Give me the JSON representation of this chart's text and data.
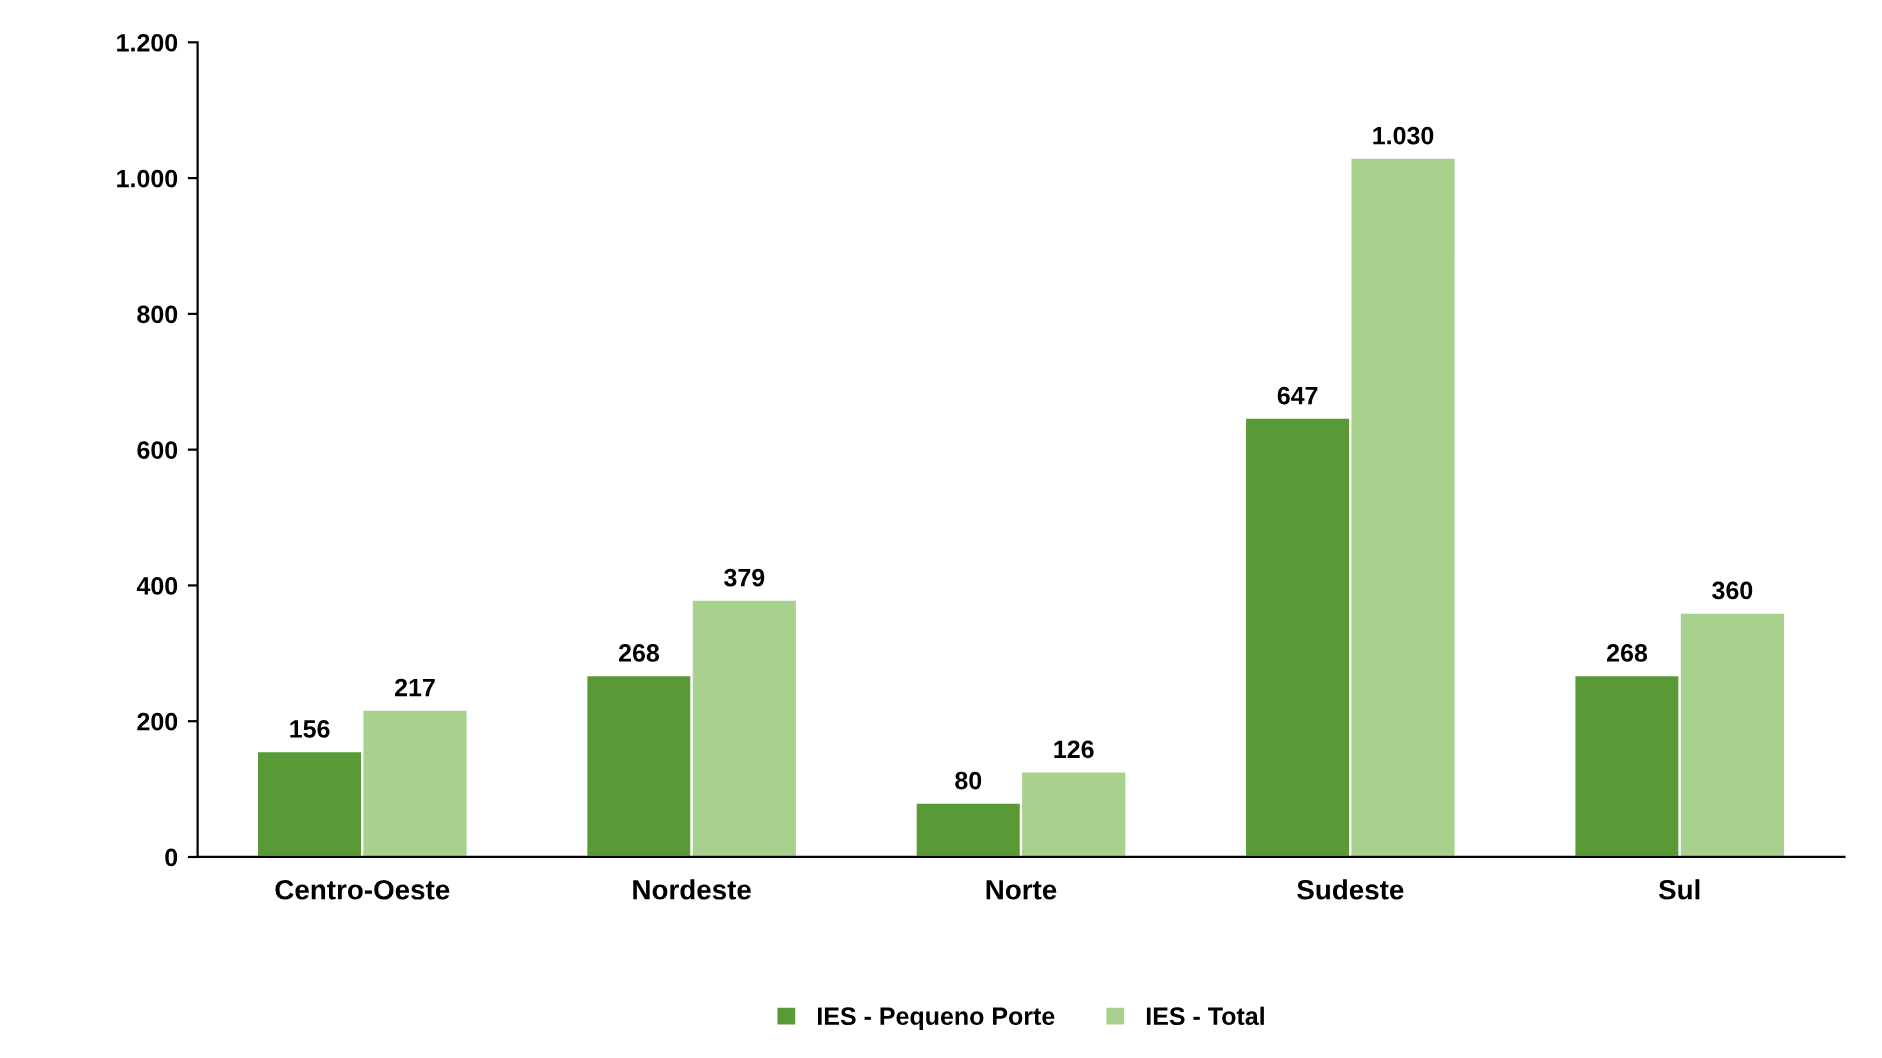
{
  "chart_data": {
    "type": "bar",
    "categories": [
      "Centro-Oeste",
      "Nordeste",
      "Norte",
      "Sudeste",
      "Sul"
    ],
    "series": [
      {
        "name": "IES - Pequeno Porte",
        "color": "#5a9a36",
        "values": [
          156,
          268,
          80,
          647,
          268
        ],
        "value_labels": [
          "156",
          "268",
          "80",
          "647",
          "268"
        ]
      },
      {
        "name": "IES - Total",
        "color": "#a9d18e",
        "values": [
          217,
          379,
          126,
          1030,
          360
        ],
        "value_labels": [
          "217",
          "379",
          "126",
          "1.030",
          "360"
        ]
      }
    ],
    "ylim": [
      0,
      1200
    ],
    "yticks": [
      0,
      200,
      400,
      600,
      800,
      {
        "value": 1000,
        "label": "1.000"
      },
      {
        "value": 1200,
        "label": "1.200"
      }
    ],
    "grid": false,
    "legend": "bottom"
  }
}
